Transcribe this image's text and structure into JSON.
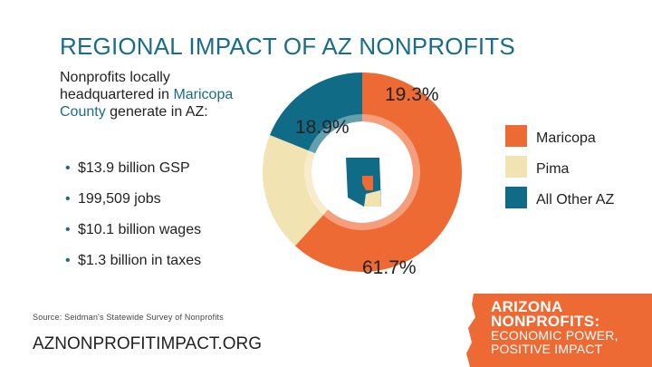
{
  "title": "REGIONAL IMPACT OF AZ NONPROFITS",
  "intro": {
    "line1": "Nonprofits locally headquartered in",
    "highlight": "Maricopa County",
    "line2": "generate in AZ:"
  },
  "bullets": [
    "$13.9 billion GSP",
    "199,509 jobs",
    "$10.1 billion wages",
    "$1.3 billion in taxes"
  ],
  "source": "Source: Seidman's Statewide Survey of Nonprofits",
  "website": "AZNONPROFITIMPACT.ORG",
  "banner": {
    "line1": "ARIZONA",
    "line2": "NONPROFITS:",
    "line3": "ECONOMIC POWER,",
    "line4": "POSITIVE IMPACT"
  },
  "colors": {
    "maricopa": "#ee6a34",
    "pima": "#f2e3b3",
    "other": "#106c86",
    "title": "#1a6c8a",
    "banner": "#ee6a34"
  },
  "chart_data": {
    "type": "pie",
    "style": "donut",
    "title": "",
    "categories": [
      "Maricopa",
      "Pima",
      "All Other AZ"
    ],
    "values": [
      61.7,
      19.3,
      18.9
    ],
    "labels": [
      "61.7%",
      "19.3%",
      "18.9%"
    ],
    "colors": [
      "#ee6a34",
      "#f2e3b3",
      "#106c86"
    ],
    "legend_position": "right"
  }
}
